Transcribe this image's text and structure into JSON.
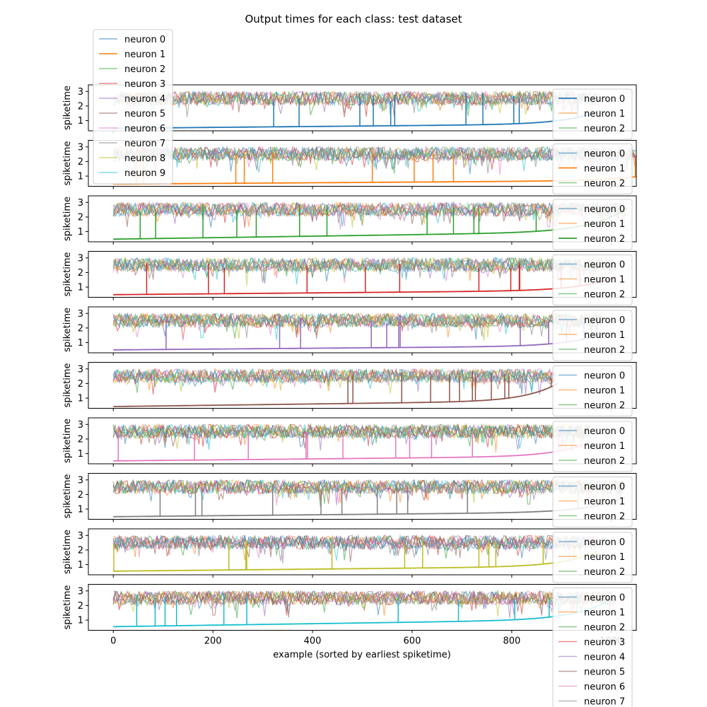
{
  "chart_data": {
    "type": "line",
    "title": "Output times for each class: test dataset",
    "ylabel": "spiketime",
    "xlabel": "example (sorted by earliest spiketime)",
    "xlim": [
      -50,
      1050
    ],
    "ylim": [
      0.3,
      3.45
    ],
    "xticks": [
      0,
      200,
      400,
      600,
      800,
      1000
    ],
    "yticks": [
      1,
      2,
      3
    ],
    "neuron_names": [
      "neuron 0",
      "neuron 1",
      "neuron 2",
      "neuron 3",
      "neuron 4",
      "neuron 5",
      "neuron 6",
      "neuron 7",
      "neuron 8",
      "neuron 9"
    ],
    "colors": [
      "#1f77b4",
      "#ff7f0e",
      "#2ca02c",
      "#d62728",
      "#9467bd",
      "#8c564b",
      "#e377c2",
      "#7f7f7f",
      "#bcbd22",
      "#17becf"
    ],
    "panels": [
      {
        "class": 0,
        "n_examples": 980,
        "earliest_start": 0.47,
        "earliest_end": 1.7,
        "noise_low": 2.05,
        "noise_high": 3.0
      },
      {
        "class": 1,
        "n_examples": 1135,
        "earliest_start": 0.45,
        "earliest_end": 1.5,
        "noise_low": 2.05,
        "noise_high": 3.0
      },
      {
        "class": 2,
        "n_examples": 1032,
        "earliest_start": 0.48,
        "earliest_end": 2.6,
        "noise_low": 2.05,
        "noise_high": 3.0
      },
      {
        "class": 3,
        "n_examples": 1010,
        "earliest_start": 0.48,
        "earliest_end": 1.7,
        "noise_low": 2.05,
        "noise_high": 3.0
      },
      {
        "class": 4,
        "n_examples": 982,
        "earliest_start": 0.5,
        "earliest_end": 1.6,
        "noise_low": 2.05,
        "noise_high": 3.0
      },
      {
        "class": 5,
        "n_examples": 892,
        "earliest_start": 0.42,
        "earliest_end": 2.0,
        "noise_low": 2.05,
        "noise_high": 3.0
      },
      {
        "class": 6,
        "n_examples": 958,
        "earliest_start": 0.5,
        "earliest_end": 1.8,
        "noise_low": 2.05,
        "noise_high": 3.0
      },
      {
        "class": 7,
        "n_examples": 1028,
        "earliest_start": 0.48,
        "earliest_end": 1.8,
        "noise_low": 2.05,
        "noise_high": 3.0
      },
      {
        "class": 8,
        "n_examples": 974,
        "earliest_start": 0.55,
        "earliest_end": 1.9,
        "noise_low": 2.05,
        "noise_high": 3.0
      },
      {
        "class": 9,
        "n_examples": 1009,
        "earliest_start": 0.55,
        "earliest_end": 2.6,
        "noise_low": 2.05,
        "noise_high": 3.0
      }
    ]
  }
}
